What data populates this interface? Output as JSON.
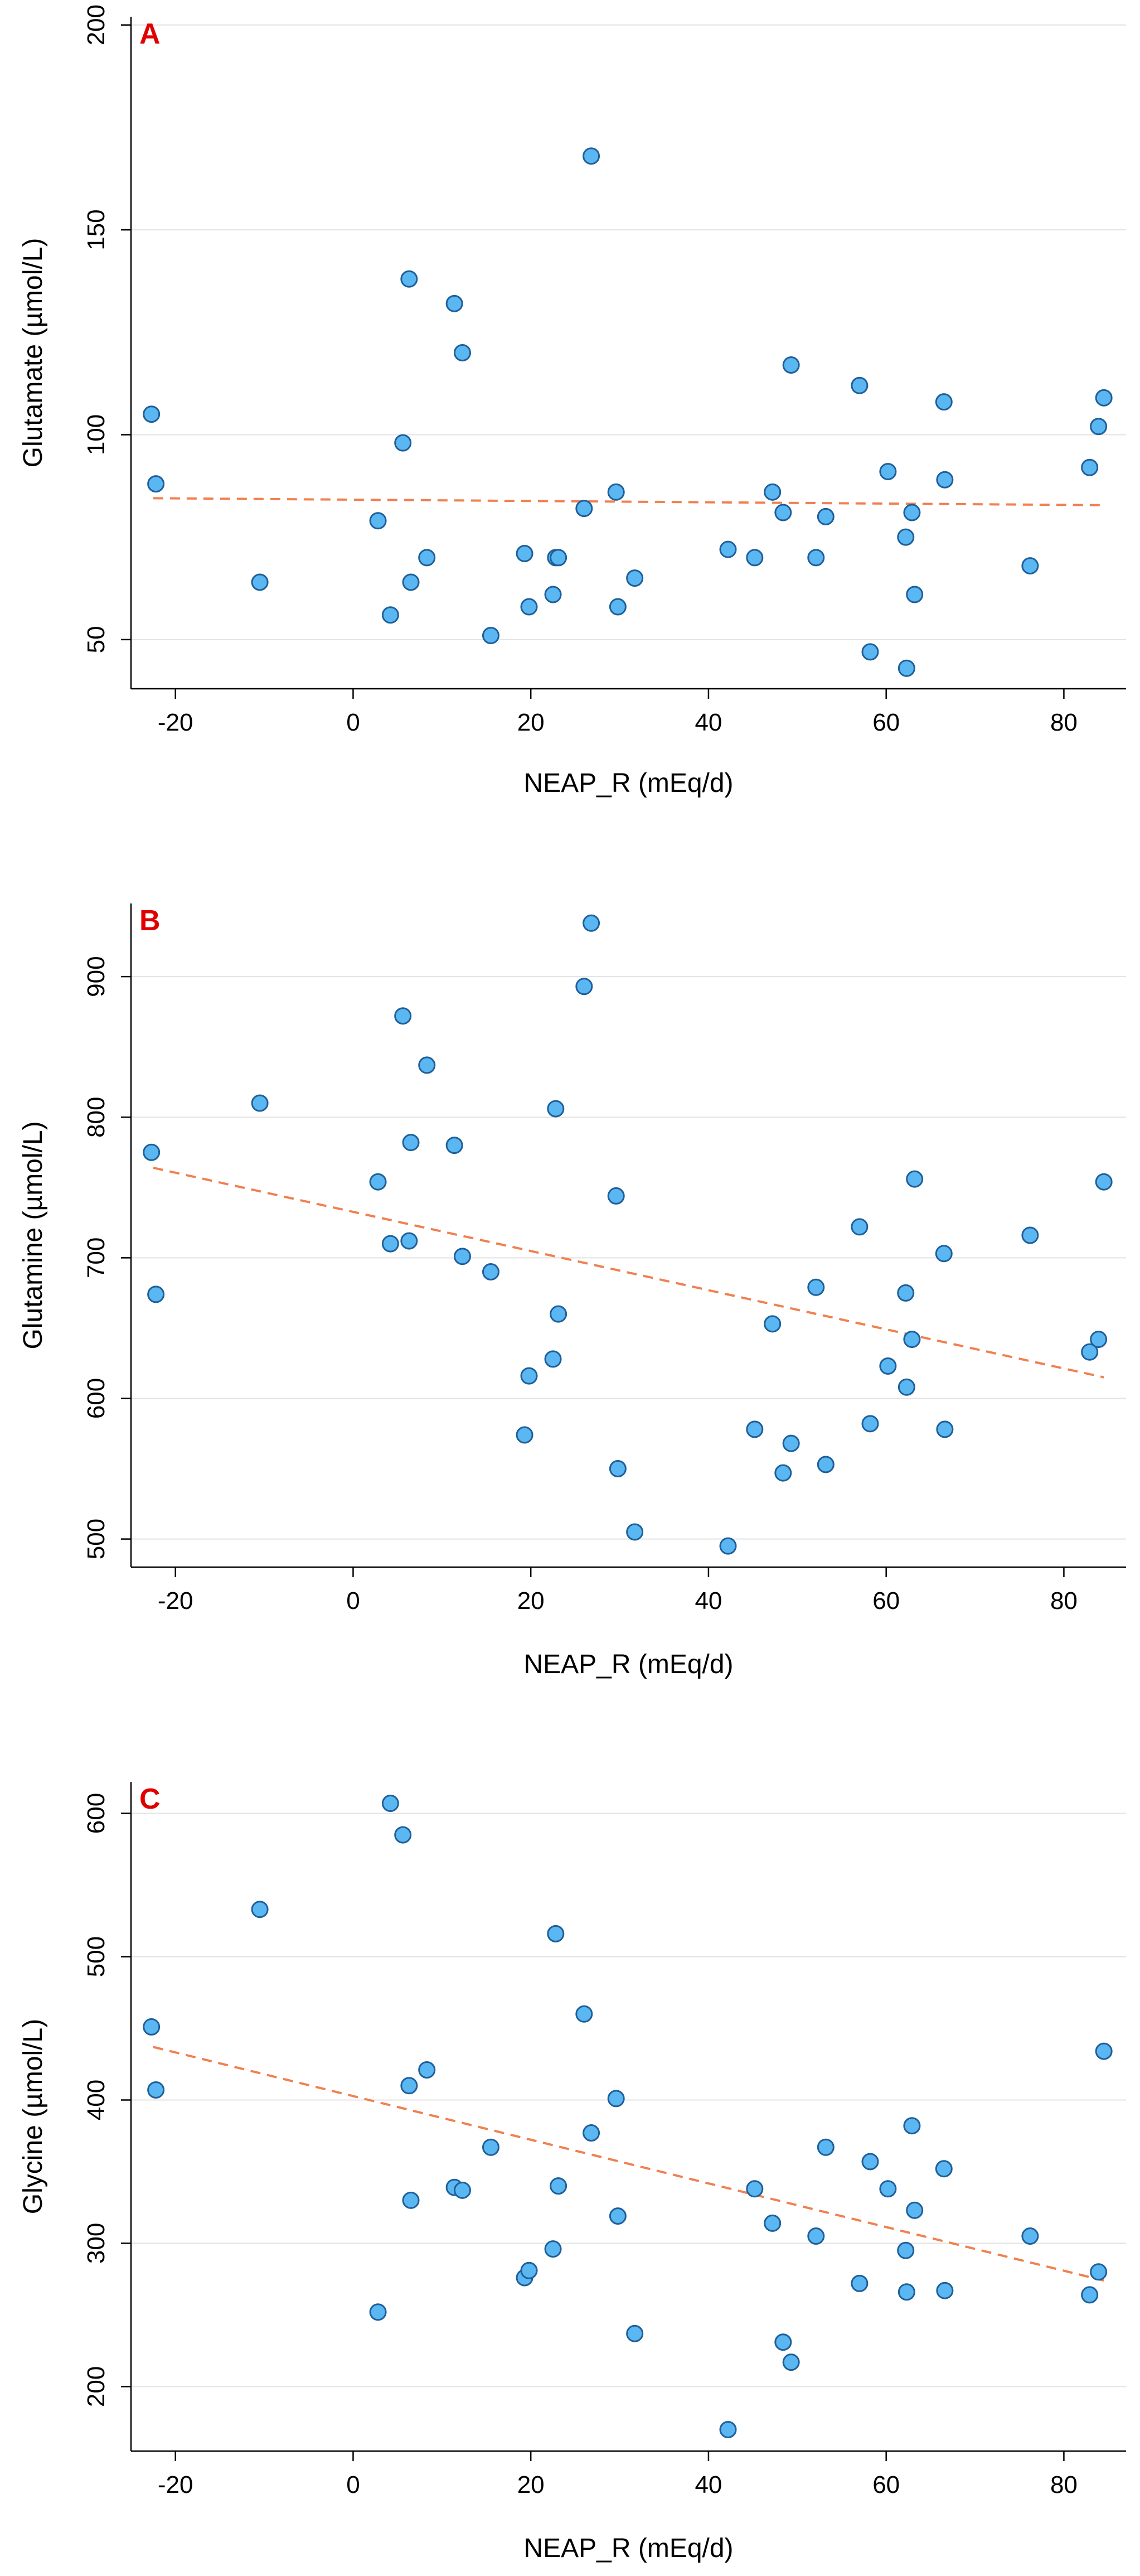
{
  "chart_data": [
    {
      "type": "scatter",
      "panel": "A",
      "xlabel": "NEAP_R (mEq/d)",
      "ylabel": "Glutamate (µmol/L)",
      "xlim": [
        -25,
        87
      ],
      "ylim": [
        38,
        202
      ],
      "xticks": [
        -20,
        0,
        20,
        40,
        60,
        80
      ],
      "yticks": [
        50,
        100,
        150,
        200
      ],
      "fit_line": {
        "x": [
          -22.5,
          84.5
        ],
        "y": [
          84.5,
          82.8
        ]
      },
      "points": [
        {
          "x": -22.7,
          "y": 105
        },
        {
          "x": -22.2,
          "y": 88
        },
        {
          "x": -10.5,
          "y": 64
        },
        {
          "x": 2.8,
          "y": 79
        },
        {
          "x": 4.2,
          "y": 56
        },
        {
          "x": 5.6,
          "y": 98
        },
        {
          "x": 6.3,
          "y": 138
        },
        {
          "x": 6.5,
          "y": 64
        },
        {
          "x": 8.3,
          "y": 70
        },
        {
          "x": 11.4,
          "y": 132
        },
        {
          "x": 12.3,
          "y": 120
        },
        {
          "x": 15.5,
          "y": 51
        },
        {
          "x": 19.3,
          "y": 71
        },
        {
          "x": 19.8,
          "y": 58
        },
        {
          "x": 22.5,
          "y": 61
        },
        {
          "x": 22.8,
          "y": 70
        },
        {
          "x": 23.1,
          "y": 70
        },
        {
          "x": 26.0,
          "y": 82
        },
        {
          "x": 26.8,
          "y": 168
        },
        {
          "x": 29.6,
          "y": 86
        },
        {
          "x": 29.8,
          "y": 58
        },
        {
          "x": 31.7,
          "y": 65
        },
        {
          "x": 42.2,
          "y": 72
        },
        {
          "x": 45.2,
          "y": 70
        },
        {
          "x": 47.2,
          "y": 86
        },
        {
          "x": 48.4,
          "y": 81
        },
        {
          "x": 49.3,
          "y": 117
        },
        {
          "x": 52.1,
          "y": 70
        },
        {
          "x": 53.2,
          "y": 80
        },
        {
          "x": 57.0,
          "y": 112
        },
        {
          "x": 58.2,
          "y": 47
        },
        {
          "x": 60.2,
          "y": 91
        },
        {
          "x": 62.2,
          "y": 75
        },
        {
          "x": 62.3,
          "y": 43
        },
        {
          "x": 62.9,
          "y": 81
        },
        {
          "x": 63.2,
          "y": 61
        },
        {
          "x": 66.5,
          "y": 108
        },
        {
          "x": 66.6,
          "y": 89
        },
        {
          "x": 76.2,
          "y": 68
        },
        {
          "x": 82.9,
          "y": 92
        },
        {
          "x": 83.9,
          "y": 102
        },
        {
          "x": 84.5,
          "y": 109
        }
      ]
    },
    {
      "type": "scatter",
      "panel": "B",
      "xlabel": "NEAP_R (mEq/d)",
      "ylabel": "Glutamine (µmol/L)",
      "xlim": [
        -25,
        87
      ],
      "ylim": [
        480,
        952
      ],
      "xticks": [
        -20,
        0,
        20,
        40,
        60,
        80
      ],
      "yticks": [
        500,
        600,
        700,
        800,
        900
      ],
      "fit_line": {
        "x": [
          -22.5,
          84.5
        ],
        "y": [
          764,
          615
        ]
      },
      "points": [
        {
          "x": -22.7,
          "y": 775
        },
        {
          "x": -22.2,
          "y": 674
        },
        {
          "x": -10.5,
          "y": 810
        },
        {
          "x": 2.8,
          "y": 754
        },
        {
          "x": 4.2,
          "y": 710
        },
        {
          "x": 5.6,
          "y": 872
        },
        {
          "x": 6.3,
          "y": 712
        },
        {
          "x": 6.5,
          "y": 782
        },
        {
          "x": 8.3,
          "y": 837
        },
        {
          "x": 11.4,
          "y": 780
        },
        {
          "x": 12.3,
          "y": 701
        },
        {
          "x": 15.5,
          "y": 690
        },
        {
          "x": 19.3,
          "y": 574
        },
        {
          "x": 19.8,
          "y": 616
        },
        {
          "x": 22.5,
          "y": 628
        },
        {
          "x": 22.8,
          "y": 806
        },
        {
          "x": 23.1,
          "y": 660
        },
        {
          "x": 26.0,
          "y": 893
        },
        {
          "x": 26.8,
          "y": 938
        },
        {
          "x": 29.6,
          "y": 744
        },
        {
          "x": 29.8,
          "y": 550
        },
        {
          "x": 31.7,
          "y": 505
        },
        {
          "x": 42.2,
          "y": 495
        },
        {
          "x": 45.2,
          "y": 578
        },
        {
          "x": 47.2,
          "y": 653
        },
        {
          "x": 48.4,
          "y": 547
        },
        {
          "x": 49.3,
          "y": 568
        },
        {
          "x": 52.1,
          "y": 679
        },
        {
          "x": 53.2,
          "y": 553
        },
        {
          "x": 57.0,
          "y": 722
        },
        {
          "x": 58.2,
          "y": 582
        },
        {
          "x": 60.2,
          "y": 623
        },
        {
          "x": 62.2,
          "y": 675
        },
        {
          "x": 62.3,
          "y": 608
        },
        {
          "x": 62.9,
          "y": 642
        },
        {
          "x": 63.2,
          "y": 756
        },
        {
          "x": 66.5,
          "y": 703
        },
        {
          "x": 66.6,
          "y": 578
        },
        {
          "x": 76.2,
          "y": 716
        },
        {
          "x": 82.9,
          "y": 633
        },
        {
          "x": 83.9,
          "y": 642
        },
        {
          "x": 84.5,
          "y": 754
        }
      ]
    },
    {
      "type": "scatter",
      "panel": "C",
      "xlabel": "NEAP_R (mEq/d)",
      "ylabel": "Glycine (µmol/L)",
      "xlim": [
        -25,
        87
      ],
      "ylim": [
        155,
        622
      ],
      "xticks": [
        -20,
        0,
        20,
        40,
        60,
        80
      ],
      "yticks": [
        200,
        300,
        400,
        500,
        600
      ],
      "fit_line": {
        "x": [
          -22.5,
          84.5
        ],
        "y": [
          437,
          274
        ]
      },
      "points": [
        {
          "x": -22.7,
          "y": 451
        },
        {
          "x": -22.2,
          "y": 407
        },
        {
          "x": -10.5,
          "y": 533
        },
        {
          "x": 2.8,
          "y": 252
        },
        {
          "x": 4.2,
          "y": 607
        },
        {
          "x": 5.6,
          "y": 585
        },
        {
          "x": 6.3,
          "y": 410
        },
        {
          "x": 6.5,
          "y": 330
        },
        {
          "x": 8.3,
          "y": 421
        },
        {
          "x": 11.4,
          "y": 339
        },
        {
          "x": 12.3,
          "y": 337
        },
        {
          "x": 15.5,
          "y": 367
        },
        {
          "x": 19.3,
          "y": 276
        },
        {
          "x": 19.8,
          "y": 281
        },
        {
          "x": 22.5,
          "y": 296
        },
        {
          "x": 22.8,
          "y": 516
        },
        {
          "x": 23.1,
          "y": 340
        },
        {
          "x": 26.0,
          "y": 460
        },
        {
          "x": 26.8,
          "y": 377
        },
        {
          "x": 29.6,
          "y": 401
        },
        {
          "x": 29.8,
          "y": 319
        },
        {
          "x": 31.7,
          "y": 237
        },
        {
          "x": 42.2,
          "y": 170
        },
        {
          "x": 45.2,
          "y": 338
        },
        {
          "x": 47.2,
          "y": 314
        },
        {
          "x": 48.4,
          "y": 231
        },
        {
          "x": 49.3,
          "y": 217
        },
        {
          "x": 52.1,
          "y": 305
        },
        {
          "x": 53.2,
          "y": 367
        },
        {
          "x": 57.0,
          "y": 272
        },
        {
          "x": 58.2,
          "y": 357
        },
        {
          "x": 60.2,
          "y": 338
        },
        {
          "x": 62.2,
          "y": 295
        },
        {
          "x": 62.3,
          "y": 266
        },
        {
          "x": 62.9,
          "y": 382
        },
        {
          "x": 63.2,
          "y": 323
        },
        {
          "x": 66.5,
          "y": 352
        },
        {
          "x": 66.6,
          "y": 267
        },
        {
          "x": 76.2,
          "y": 305
        },
        {
          "x": 82.9,
          "y": 264
        },
        {
          "x": 83.9,
          "y": 280
        },
        {
          "x": 84.5,
          "y": 434
        }
      ]
    }
  ]
}
